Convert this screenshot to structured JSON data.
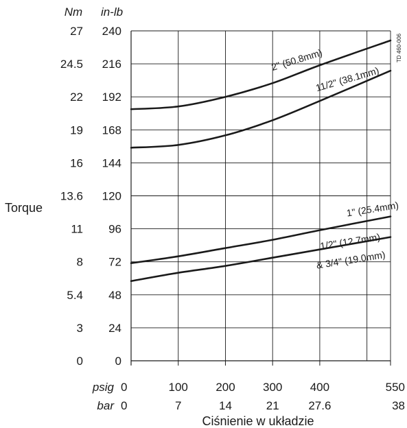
{
  "chart_data": {
    "type": "line",
    "title": "",
    "ylabel": "Torque",
    "xlabel": "Ciśnienie w układzie",
    "document_id": "TD 460-006",
    "y_units": [
      "Nm",
      "in-lb"
    ],
    "x_units": [
      "psig",
      "bar"
    ],
    "ylim": [
      0,
      240
    ],
    "xlim": [
      0,
      550
    ],
    "grid": true,
    "y_ticks": {
      "in_lb": [
        "0",
        "24",
        "48",
        "72",
        "96",
        "120",
        "144",
        "168",
        "192",
        "216",
        "240"
      ],
      "nm": [
        "0",
        "3",
        "5.4",
        "8",
        "11",
        "13.6",
        "16",
        "19",
        "22",
        "24.5",
        "27"
      ]
    },
    "x_ticks": {
      "psig": [
        "0",
        "100",
        "200",
        "300",
        "400",
        "550"
      ],
      "bar": [
        "0",
        "7",
        "14",
        "21",
        "27.6",
        "38"
      ]
    },
    "series": [
      {
        "name": "2\" (50.8mm)",
        "x": [
          0,
          100,
          200,
          300,
          400,
          550
        ],
        "y": [
          183,
          185,
          192,
          202,
          215,
          233
        ]
      },
      {
        "name": "1 1/2\" (38.1mm)",
        "x": [
          0,
          100,
          200,
          300,
          400,
          550
        ],
        "y": [
          155,
          157,
          164,
          175,
          189,
          211
        ]
      },
      {
        "name": "1\" (25.4mm)",
        "x": [
          0,
          100,
          200,
          300,
          400,
          550
        ],
        "y": [
          71,
          76,
          82,
          88,
          95,
          105
        ]
      },
      {
        "name": "1/2\" (12.7mm) & 3/4\" (19.0mm)",
        "x": [
          0,
          100,
          200,
          300,
          400,
          550
        ],
        "y": [
          58,
          64,
          69,
          75,
          81,
          90
        ]
      }
    ],
    "series_labels": [
      {
        "text": "2\" (50.8mm)"
      },
      {
        "text": "11/2\" (38.1mm)"
      },
      {
        "text": "1\" (25.4mm)"
      },
      {
        "text": "1/2\" (12.7mm)"
      },
      {
        "text": "& 3/4\" (19.0mm)"
      }
    ]
  }
}
